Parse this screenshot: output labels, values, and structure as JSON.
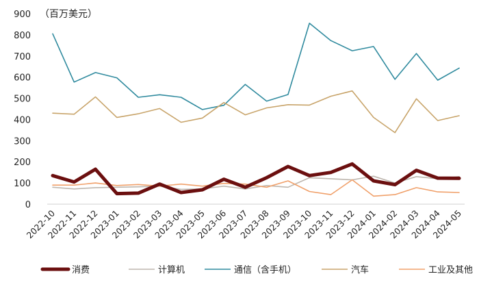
{
  "chart_data": {
    "type": "line",
    "title": "",
    "unit_label": "（百万美元）",
    "xlabel": "",
    "ylabel": "",
    "ylim": [
      0,
      900
    ],
    "yticks": [
      0,
      100,
      200,
      300,
      400,
      500,
      600,
      700,
      800,
      900
    ],
    "grid": false,
    "legend_position": "bottom",
    "categories": [
      "2022-10",
      "2022-11",
      "2022-12",
      "2023-01",
      "2023-02",
      "2023-03",
      "2023-04",
      "2023-05",
      "2023-06",
      "2023-07",
      "2023-08",
      "2023-09",
      "2023-10",
      "2023-11",
      "2023-12",
      "2024-01",
      "2024-02",
      "2024-03",
      "2024-04",
      "2024-05"
    ],
    "series": [
      {
        "name": "消费",
        "color": "#6b0f0f",
        "width": 5,
        "values": [
          135,
          105,
          165,
          50,
          52,
          95,
          55,
          68,
          118,
          80,
          125,
          178,
          135,
          150,
          190,
          110,
          92,
          160,
          123,
          122
        ]
      },
      {
        "name": "计算机",
        "color": "#bdb6ae",
        "width": 1.6,
        "values": [
          80,
          72,
          78,
          80,
          82,
          85,
          70,
          72,
          85,
          72,
          88,
          80,
          125,
          120,
          115,
          132,
          100,
          130,
          120,
          130
        ]
      },
      {
        "name": "通信（含手机）",
        "color": "#2f8a9e",
        "width": 1.6,
        "values": [
          805,
          577,
          622,
          597,
          505,
          517,
          505,
          447,
          467,
          566,
          487,
          518,
          855,
          773,
          725,
          745,
          590,
          712,
          586,
          643
        ]
      },
      {
        "name": "汽车",
        "color": "#c8a46a",
        "width": 1.6,
        "values": [
          430,
          425,
          507,
          410,
          427,
          452,
          387,
          407,
          480,
          422,
          455,
          470,
          468,
          510,
          535,
          410,
          338,
          498,
          395,
          418
        ]
      },
      {
        "name": "工业及其他",
        "color": "#f0a06a",
        "width": 1.6,
        "values": [
          90,
          90,
          100,
          88,
          93,
          85,
          95,
          85,
          98,
          95,
          80,
          110,
          60,
          45,
          115,
          38,
          45,
          78,
          58,
          55
        ]
      }
    ]
  }
}
